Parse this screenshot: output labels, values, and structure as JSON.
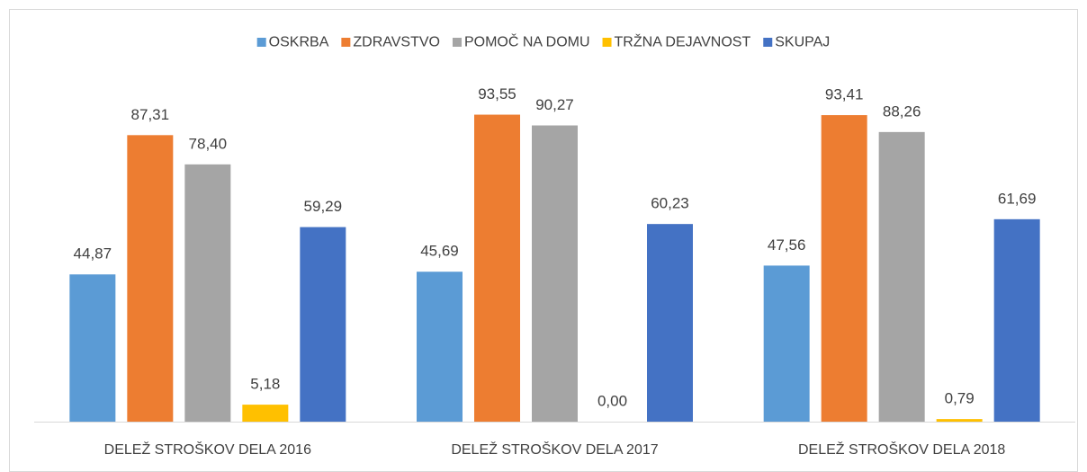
{
  "chart_data": {
    "type": "bar",
    "categories": [
      "DELEŽ STROŠKOV DELA 2016",
      "DELEŽ STROŠKOV DELA 2017",
      "DELEŽ STROŠKOV DELA 2018"
    ],
    "series": [
      {
        "name": "OSKRBA",
        "color": "#5b9bd5",
        "values": [
          44.87,
          45.69,
          47.56
        ],
        "value_labels": [
          "44,87",
          "45,69",
          "47,56"
        ]
      },
      {
        "name": "ZDRAVSTVO",
        "color": "#ed7d31",
        "values": [
          87.31,
          93.55,
          93.41
        ],
        "value_labels": [
          "87,31",
          "93,55",
          "93,41"
        ]
      },
      {
        "name": "POMOČ NA DOMU",
        "color": "#a5a5a5",
        "values": [
          78.4,
          90.27,
          88.26
        ],
        "value_labels": [
          "78,40",
          "90,27",
          "88,26"
        ]
      },
      {
        "name": "TRŽNA DEJAVNOST",
        "color": "#ffc000",
        "values": [
          5.18,
          0.0,
          0.79
        ],
        "value_labels": [
          "5,18",
          "0,00",
          "0,79"
        ]
      },
      {
        "name": "SKUPAJ",
        "color": "#4472c4",
        "values": [
          59.29,
          60.23,
          61.69
        ],
        "value_labels": [
          "59,29",
          "60,23",
          "61,69"
        ]
      }
    ],
    "ylim": [
      0,
      100
    ],
    "legend": "top"
  }
}
